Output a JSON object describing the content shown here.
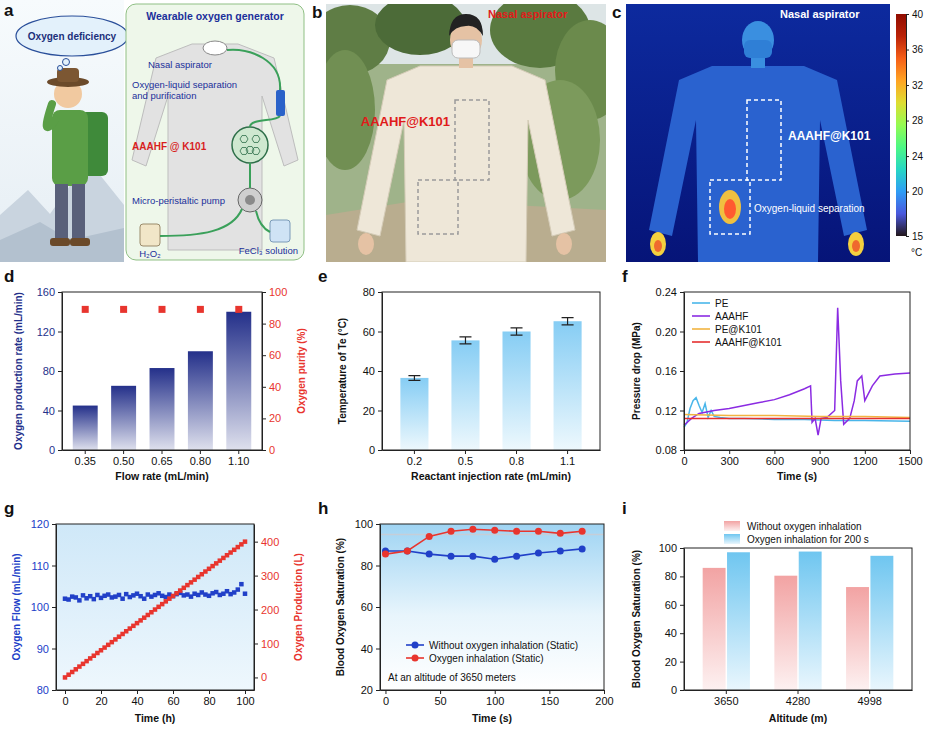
{
  "illustrations": {
    "a": {
      "panel_label": "a",
      "bubble": "Oxygen deficiency",
      "title": "Wearable oxygen generator",
      "labels": [
        "Nasal aspirator",
        "Oxygen-liquid separation and purification",
        "AAAHF @ K101",
        "Micro-peristaltic pump",
        "H₂O₂",
        "FeCl₃ solution"
      ]
    },
    "b": {
      "panel_label": "b",
      "labels": [
        "Nasal aspirator",
        "AAAHF@K101"
      ]
    },
    "c": {
      "panel_label": "c",
      "labels": [
        "Nasal aspirator",
        "AAAHF@K101",
        "Oxygen-liquid separation"
      ],
      "colorbar": {
        "range": [
          15,
          40
        ],
        "ticks": [
          15,
          20,
          24,
          28,
          32,
          36,
          40
        ],
        "unit": "°C"
      }
    }
  },
  "chart_data": [
    {
      "type": "bar",
      "panel_label": "d",
      "categories": [
        "0.35",
        "0.50",
        "0.65",
        "0.80",
        "1.10"
      ],
      "x_label": "Flow rate (mL/min)",
      "y_label": "Oxygen production rate (mL/min)",
      "y2_label": "Oxygen purity (%)",
      "ylim": [
        0,
        160
      ],
      "yticks": [
        0,
        40,
        80,
        120,
        160
      ],
      "y2lim": [
        0,
        100
      ],
      "y2ticks": [
        0,
        20,
        40,
        60,
        80,
        100
      ],
      "series": [
        {
          "type": "bar",
          "color": "#24308a",
          "values": [
            45,
            65,
            83,
            100,
            140
          ]
        },
        {
          "type": "scatter",
          "axis": "y2",
          "marker": "square",
          "color": "#e8352e",
          "values": [
            89,
            89,
            89,
            89,
            89
          ]
        }
      ]
    },
    {
      "type": "bar",
      "panel_label": "e",
      "categories": [
        "0.2",
        "0.5",
        "0.8",
        "1.1"
      ],
      "x_label": "Reactant injection rate (mL/min)",
      "y_label": "Temperature of Te (°C)",
      "ylim": [
        0,
        80
      ],
      "yticks": [
        0,
        20,
        40,
        60,
        80
      ],
      "series": [
        {
          "type": "bar",
          "color": "#86cdf4",
          "values": [
            36.5,
            55.5,
            60,
            65.2
          ],
          "errors": [
            1.2,
            1.8,
            1.8,
            1.8
          ]
        }
      ]
    },
    {
      "type": "line",
      "panel_label": "f",
      "x_label": "Time (s)",
      "y_label": "Pressure drop (MPa)",
      "xlim": [
        0,
        1500
      ],
      "xticks": [
        0,
        300,
        600,
        900,
        1200,
        1500
      ],
      "ylim": [
        0.08,
        0.24
      ],
      "yticks": [
        0.08,
        0.12,
        0.16,
        {
          "value": 0.2,
          "label": "0.20"
        },
        0.24
      ],
      "legend": "upper left",
      "series": [
        {
          "name": "PE",
          "color": "#49b6ea",
          "x": [
            0,
            20,
            40,
            60,
            80,
            100,
            120,
            140,
            160,
            180,
            200,
            240,
            300,
            400,
            600,
            800,
            1000,
            1200,
            1500
          ],
          "values": [
            0.103,
            0.108,
            0.122,
            0.13,
            0.133,
            0.125,
            0.118,
            0.127,
            0.113,
            0.12,
            0.114,
            0.113,
            0.112,
            0.112,
            0.111,
            0.111,
            0.11,
            0.11,
            0.109
          ]
        },
        {
          "name": "AAAHF",
          "color": "#8b2be2",
          "x": [
            0,
            50,
            100,
            200,
            300,
            400,
            500,
            600,
            700,
            800,
            840,
            850,
            870,
            890,
            910,
            950,
            1000,
            1020,
            1040,
            1060,
            1100,
            1130,
            1150,
            1180,
            1200,
            1250,
            1300,
            1400,
            1500
          ],
          "values": [
            0.105,
            0.112,
            0.117,
            0.12,
            0.122,
            0.125,
            0.128,
            0.131,
            0.136,
            0.142,
            0.145,
            0.108,
            0.112,
            0.095,
            0.112,
            0.113,
            0.12,
            0.224,
            0.15,
            0.106,
            0.112,
            0.13,
            0.15,
            0.155,
            0.13,
            0.145,
            0.155,
            0.157,
            0.158
          ]
        },
        {
          "name": "PE@K101",
          "color": "#f2b441",
          "x": [
            0,
            300,
            600,
            900,
            1200,
            1500
          ],
          "values": [
            0.116,
            0.115,
            0.115,
            0.114,
            0.114,
            0.113
          ]
        },
        {
          "name": "AAAHF@K101",
          "color": "#e53030",
          "x": [
            0,
            300,
            600,
            900,
            1200,
            1500
          ],
          "values": [
            0.112,
            0.112,
            0.112,
            0.112,
            0.112,
            0.112
          ]
        }
      ]
    },
    {
      "type": "line",
      "panel_label": "g",
      "x_label": "Time (h)",
      "y_label": "Oxygen Flow (mL/min)",
      "y2_label": "Oxygen Production (L)",
      "xlim": [
        -5,
        105
      ],
      "xticks": [
        0,
        20,
        40,
        60,
        80,
        100
      ],
      "ylim": [
        80,
        120
      ],
      "yticks": [
        80,
        90,
        100,
        110,
        120
      ],
      "y2lim": [
        -37,
        452
      ],
      "y2ticks": [
        0,
        100,
        200,
        300,
        400
      ],
      "x": [
        0,
        2,
        4,
        6,
        8,
        10,
        12,
        14,
        16,
        18,
        20,
        22,
        24,
        26,
        28,
        30,
        32,
        34,
        36,
        38,
        40,
        42,
        44,
        46,
        48,
        50,
        52,
        54,
        56,
        58,
        60,
        62,
        64,
        66,
        68,
        70,
        72,
        74,
        76,
        78,
        80,
        82,
        84,
        86,
        88,
        90,
        92,
        94,
        96,
        98,
        100
      ],
      "series": [
        {
          "type": "scatter",
          "marker": "square",
          "color": "#2140c8",
          "values": [
            102.0,
            101.8,
            102.5,
            102.3,
            101.6,
            102.8,
            102.1,
            102.6,
            101.9,
            102.9,
            102.2,
            102.7,
            103.0,
            102.3,
            102.5,
            102.9,
            102.0,
            103.1,
            102.4,
            102.8,
            103.2,
            102.6,
            102.0,
            103.0,
            102.5,
            102.9,
            103.3,
            102.7,
            102.4,
            103.0,
            102.6,
            103.1,
            103.4,
            102.8,
            103.0,
            102.5,
            103.2,
            102.9,
            103.5,
            103.0,
            102.7,
            103.3,
            103.6,
            102.9,
            103.2,
            103.8,
            103.1,
            103.5,
            104.2,
            105.5,
            103.2
          ]
        },
        {
          "type": "line",
          "axis": "y2",
          "marker": "square",
          "color": "#e8352e",
          "values": [
            0,
            8,
            16,
            24,
            32,
            40,
            48,
            56,
            64,
            72,
            80,
            88,
            96,
            104,
            112,
            120,
            128,
            136,
            144,
            152,
            160,
            168,
            176,
            184,
            192,
            200,
            208,
            216,
            224,
            232,
            240,
            248,
            256,
            264,
            272,
            280,
            288,
            296,
            304,
            312,
            320,
            328,
            336,
            344,
            352,
            360,
            368,
            376,
            384,
            392,
            400
          ]
        }
      ]
    },
    {
      "type": "line",
      "panel_label": "h",
      "x_label": "Time (s)",
      "y_label": "Blood Oxygen Saturation (%)",
      "annotation": "At an altitude of 3650 meters",
      "threshold": 95,
      "xlim": [
        -5,
        200
      ],
      "xticks": [
        0,
        50,
        100,
        150,
        200
      ],
      "ylim": [
        20,
        100
      ],
      "yticks": [
        20,
        40,
        60,
        80,
        100
      ],
      "legend": "lower center",
      "x": [
        0,
        20,
        40,
        60,
        80,
        100,
        120,
        140,
        160,
        180
      ],
      "series": [
        {
          "name": "Without oxygen inhalation (Static)",
          "marker": "circle",
          "color": "#2140c8",
          "values": [
            87,
            87,
            85.5,
            84.5,
            84.5,
            83,
            84.5,
            86,
            87,
            88
          ]
        },
        {
          "name": "Oxygen inhalation (Static)",
          "marker": "circle",
          "color": "#e8352e",
          "values": [
            85.5,
            87,
            94,
            96.5,
            97.5,
            97,
            96.5,
            96.5,
            95.5,
            96.5
          ]
        }
      ]
    },
    {
      "type": "bar",
      "panel_label": "i",
      "categories": [
        "3650",
        "4280",
        "4998"
      ],
      "x_label": "Altitude (m)",
      "y_label": "Blood Oxygen Saturation (%)",
      "ylim": [
        0,
        100
      ],
      "yticks": [
        0,
        20,
        40,
        60,
        80,
        100
      ],
      "legend": "top",
      "series": [
        {
          "name": "Without oxygen inhalation",
          "color": "#f2a3a3",
          "values": [
            86,
            80.5,
            72.5
          ]
        },
        {
          "name": "Oxygen inhalation for 200 s",
          "color": "#6fc6f0",
          "values": [
            97,
            97.5,
            94.5
          ]
        }
      ]
    }
  ]
}
